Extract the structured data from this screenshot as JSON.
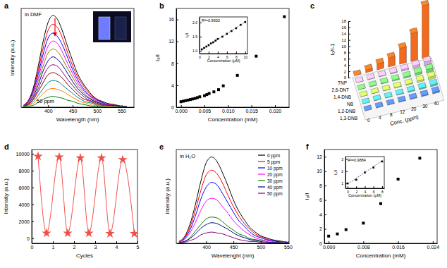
{
  "chart_data": [
    {
      "type": "line",
      "title": "a",
      "x_label": "Wavelength (nm)",
      "y_label": "Intensity (a.u.)",
      "annotations": [
        "in DMF",
        "50 ppm"
      ],
      "x": [
        350,
        360,
        370,
        380,
        390,
        400,
        410,
        420,
        430,
        440,
        450,
        460,
        470,
        480,
        490,
        500,
        510,
        520,
        530,
        540,
        550,
        560
      ],
      "series": [
        {
          "color": "#000000",
          "values": [
            2,
            7,
            20,
            42,
            67,
            86,
            93,
            88,
            76,
            61,
            47,
            34,
            25,
            18,
            12,
            8,
            6,
            4,
            3,
            2,
            1,
            1
          ]
        },
        {
          "color": "#ff0000",
          "values": [
            2,
            7,
            18,
            38,
            60,
            78,
            84,
            80,
            69,
            55,
            42,
            31,
            23,
            16,
            11,
            8,
            5,
            3,
            3,
            2,
            1,
            1
          ]
        },
        {
          "color": "#0000ff",
          "values": [
            2,
            6,
            17,
            34,
            54,
            70,
            75,
            71,
            62,
            50,
            38,
            28,
            20,
            14,
            10,
            7,
            5,
            3,
            2,
            2,
            1,
            1
          ]
        },
        {
          "color": "#ff00ff",
          "values": [
            1,
            5,
            15,
            30,
            48,
            62,
            67,
            64,
            55,
            44,
            34,
            25,
            18,
            13,
            9,
            6,
            4,
            3,
            2,
            1,
            1,
            1
          ]
        },
        {
          "color": "#808000",
          "values": [
            1,
            5,
            13,
            27,
            42,
            55,
            59,
            56,
            48,
            39,
            30,
            22,
            16,
            11,
            8,
            5,
            4,
            2,
            2,
            1,
            1,
            1
          ]
        },
        {
          "color": "#000080",
          "values": [
            1,
            4,
            11,
            23,
            37,
            47,
            51,
            48,
            42,
            34,
            26,
            19,
            14,
            10,
            7,
            5,
            3,
            2,
            2,
            1,
            1,
            1
          ]
        },
        {
          "color": "#800080",
          "values": [
            1,
            3,
            9,
            19,
            31,
            40,
            43,
            41,
            35,
            28,
            22,
            16,
            12,
            8,
            6,
            4,
            3,
            2,
            1,
            1,
            0,
            0
          ]
        },
        {
          "color": "#800000",
          "values": [
            1,
            3,
            8,
            16,
            25,
            33,
            35,
            33,
            29,
            23,
            18,
            13,
            9,
            7,
            5,
            3,
            2,
            1,
            1,
            1,
            0,
            0
          ]
        },
        {
          "color": "#008080",
          "values": [
            1,
            2,
            6,
            12,
            19,
            25,
            27,
            26,
            22,
            18,
            14,
            10,
            7,
            5,
            4,
            2,
            2,
            1,
            1,
            1,
            0,
            0
          ]
        },
        {
          "color": "#ff8000",
          "values": [
            0,
            2,
            4,
            9,
            14,
            18,
            19,
            18,
            16,
            13,
            10,
            7,
            5,
            4,
            2,
            2,
            1,
            1,
            1,
            0,
            0,
            0
          ]
        },
        {
          "color": "#008000",
          "values": [
            0,
            1,
            2,
            5,
            8,
            10,
            11,
            10,
            9,
            7,
            6,
            4,
            3,
            2,
            1,
            1,
            1,
            0,
            0,
            0,
            0,
            0
          ]
        }
      ],
      "xlim": [
        345,
        575
      ],
      "xticks": [
        400,
        450,
        500,
        550
      ],
      "ylim": [
        0,
        100
      ],
      "tick_labels": "x"
    },
    {
      "type": "scatter",
      "title": "b",
      "x_label": "Concentration (mM)",
      "y_label": "I₀/I",
      "x": [
        0,
        0.0005,
        0.001,
        0.0015,
        0.002,
        0.0025,
        0.003,
        0.0035,
        0.004,
        0.005,
        0.0055,
        0.006,
        0.007,
        0.008,
        0.009,
        0.012,
        0.016,
        0.022
      ],
      "series": [
        {
          "color": "#000000",
          "marker": "square",
          "values": [
            1.0,
            1.1,
            1.2,
            1.3,
            1.4,
            1.5,
            1.6,
            1.75,
            1.9,
            2.1,
            2.3,
            2.5,
            2.8,
            3.2,
            3.9,
            5.8,
            9.3,
            16.5
          ]
        }
      ],
      "xlim": [
        -0.001,
        0.023
      ],
      "xticks": [
        {
          "value": 0,
          "label": "0.000"
        },
        0.005,
        {
          "value": 0.01,
          "label": "0.010"
        },
        0.015,
        {
          "value": 0.02,
          "label": "0.020"
        }
      ],
      "ylim": [
        0,
        18
      ],
      "yticks": [
        0,
        4,
        8,
        12,
        16
      ]
    },
    {
      "type": "scatter",
      "x_label": "Concentration (μM)",
      "y_label": "I₀/I",
      "annotations": [
        "R²=0.9933"
      ],
      "x": [
        0.5,
        1,
        1.5,
        2,
        2.5,
        3,
        3.5,
        4,
        5,
        6,
        7,
        8,
        9,
        10
      ],
      "series": [
        {
          "color": "#000000",
          "marker": "square",
          "values": [
            1.05,
            1.1,
            1.15,
            1.2,
            1.26,
            1.3,
            1.36,
            1.42,
            1.5,
            1.6,
            1.7,
            1.8,
            1.92,
            2.02
          ]
        },
        {
          "type": "line",
          "line_style": "dashed",
          "color": "#000000",
          "x": [
            0.5,
            10
          ],
          "values": [
            1.04,
            2.02
          ]
        }
      ],
      "xlim": [
        0,
        10.5
      ],
      "xticks": [
        0,
        2,
        4,
        6,
        8,
        10
      ],
      "ylim": [
        0.9,
        2.2
      ],
      "yticks": [
        {
          "value": 1,
          "label": "1.0"
        },
        1.5,
        {
          "value": 2,
          "label": "2.0"
        }
      ]
    },
    {
      "type": "bar3d",
      "title": "c",
      "x_label": "Conc. (ppm)",
      "y_label": "I₀/I-1",
      "categories": [
        "0",
        "4",
        "8",
        "12",
        "20",
        "30",
        "40"
      ],
      "series": [
        {
          "name": "TNP",
          "color": "#f26b1d",
          "values": [
            0,
            0.9,
            1.9,
            2.9,
            5.1,
            8.9,
            16.8
          ]
        },
        {
          "name": "2,6-DNT",
          "color": "#d7a8e0",
          "values": [
            0,
            0.1,
            0.2,
            0.3,
            0.5,
            0.8,
            1.2
          ]
        },
        {
          "name": "1,4-DNB",
          "color": "#6fd26f",
          "values": [
            0,
            0.1,
            0.2,
            0.3,
            0.4,
            0.7,
            1.0
          ]
        },
        {
          "name": "NB",
          "color": "#b8e05a",
          "values": [
            0,
            0.1,
            0.1,
            0.2,
            0.3,
            0.5,
            0.8
          ]
        },
        {
          "name": "1,2-DNB",
          "color": "#4fc3c9",
          "values": [
            0,
            0.1,
            0.1,
            0.2,
            0.3,
            0.4,
            0.6
          ]
        },
        {
          "name": "1,3-DNB",
          "color": "#4f7fe0",
          "values": [
            0,
            0.1,
            0.1,
            0.2,
            0.2,
            0.3,
            0.5
          ]
        }
      ],
      "ylim": [
        0,
        18
      ],
      "yticks": [
        0,
        2,
        4,
        6,
        8,
        10,
        12,
        14,
        16,
        18
      ]
    },
    {
      "type": "line",
      "title": "d",
      "x_label": "Cycles",
      "y_label": "Intensity (a.u.)",
      "x": [
        0.3,
        0.7,
        1.3,
        1.7,
        2.3,
        2.7,
        3.3,
        3.7,
        4.3,
        4.85
      ],
      "series": [
        {
          "color": "#f0504a",
          "marker": "star",
          "values": [
            9700,
            600,
            9600,
            600,
            9500,
            600,
            9500,
            550,
            9300,
            550
          ]
        }
      ],
      "xlim": [
        0,
        5
      ],
      "xticks": [
        0,
        1,
        2,
        3,
        4,
        5
      ],
      "ylim": [
        -600,
        10500
      ],
      "yticks": [
        0,
        2000,
        4000,
        6000,
        8000,
        10000
      ]
    },
    {
      "type": "line",
      "title": "e",
      "x_label": "Wavelenght (nm)",
      "y_label": "Intensity (a.u.)",
      "annotations": [
        "in H₂O"
      ],
      "legend": "upper right",
      "x": [
        350,
        360,
        370,
        380,
        390,
        400,
        410,
        420,
        430,
        440,
        450,
        460,
        470,
        480,
        490,
        500,
        510,
        520,
        530,
        540,
        550
      ],
      "series": [
        {
          "name": "0 ppm",
          "color": "#000000",
          "values": [
            2,
            7,
            20,
            41,
            66,
            86,
            92,
            87,
            75,
            61,
            46,
            34,
            25,
            17,
            12,
            8,
            6,
            4,
            3,
            2,
            1
          ]
        },
        {
          "name": "5 ppm",
          "color": "#ff0000",
          "values": [
            2,
            6,
            17,
            35,
            56,
            73,
            78,
            74,
            64,
            51,
            39,
            29,
            21,
            15,
            10,
            7,
            5,
            3,
            2,
            2,
            1
          ]
        },
        {
          "name": "10 ppm",
          "color": "#0000ff",
          "values": [
            1,
            5,
            14,
            29,
            47,
            60,
            65,
            62,
            53,
            43,
            33,
            24,
            18,
            12,
            8,
            6,
            4,
            3,
            2,
            1,
            1
          ]
        },
        {
          "name": "20 ppm",
          "color": "#ff00ff",
          "values": [
            1,
            4,
            11,
            22,
            35,
            45,
            48,
            46,
            39,
            32,
            24,
            18,
            13,
            9,
            6,
            4,
            3,
            2,
            1,
            1,
            0
          ]
        },
        {
          "name": "30 ppm",
          "color": "#008000",
          "values": [
            1,
            2,
            6,
            13,
            20,
            26,
            28,
            27,
            23,
            18,
            14,
            10,
            8,
            5,
            4,
            3,
            2,
            1,
            1,
            1,
            0
          ]
        },
        {
          "name": "40 ppm",
          "color": "#000080",
          "values": [
            0,
            2,
            5,
            10,
            16,
            20,
            22,
            21,
            18,
            15,
            11,
            8,
            6,
            4,
            3,
            2,
            1,
            1,
            1,
            0,
            0
          ]
        },
        {
          "name": "50 ppm",
          "color": "#800080",
          "values": [
            0,
            1,
            3,
            5,
            9,
            11,
            12,
            11,
            10,
            8,
            6,
            4,
            3,
            2,
            2,
            1,
            1,
            0,
            0,
            0,
            0
          ]
        }
      ],
      "xlim": [
        345,
        552
      ],
      "xticks": [
        400,
        450,
        500,
        550
      ],
      "ylim": [
        0,
        100
      ],
      "tick_labels": "x"
    },
    {
      "type": "scatter",
      "title": "f",
      "x_label": "Concentration (mM)",
      "y_label": "I₀/I",
      "x": [
        0,
        0.002,
        0.004,
        0.008,
        0.012,
        0.016,
        0.021
      ],
      "series": [
        {
          "color": "#000000",
          "marker": "square",
          "values": [
            1.0,
            1.3,
            1.9,
            2.8,
            5.5,
            8.9,
            11.8
          ]
        }
      ],
      "xlim": [
        -0.001,
        0.025
      ],
      "xticks": [
        {
          "value": 0,
          "label": "0.000"
        },
        0.008,
        0.016,
        0.024
      ],
      "ylim": [
        0,
        13
      ],
      "yticks": [
        0,
        2,
        4,
        6,
        8,
        10,
        12
      ]
    },
    {
      "type": "scatter",
      "x_label": "Concentration (μM)",
      "y_label": "I₀/I",
      "annotations": [
        "R²=0.9884"
      ],
      "x": [
        0,
        2,
        4,
        6,
        8
      ],
      "series": [
        {
          "color": "#000000",
          "marker": "square",
          "values": [
            1.0,
            1.3,
            1.9,
            2.3,
            2.8
          ]
        },
        {
          "type": "line",
          "line_style": "dashed",
          "color": "#000000",
          "x": [
            0,
            8
          ],
          "values": [
            0.95,
            2.85
          ]
        }
      ],
      "xlim": [
        -0.5,
        8.5
      ],
      "xticks": [
        0,
        2,
        4,
        6,
        8
      ],
      "ylim": [
        0.6,
        3.2
      ],
      "yticks": [
        1,
        2,
        3
      ]
    }
  ]
}
